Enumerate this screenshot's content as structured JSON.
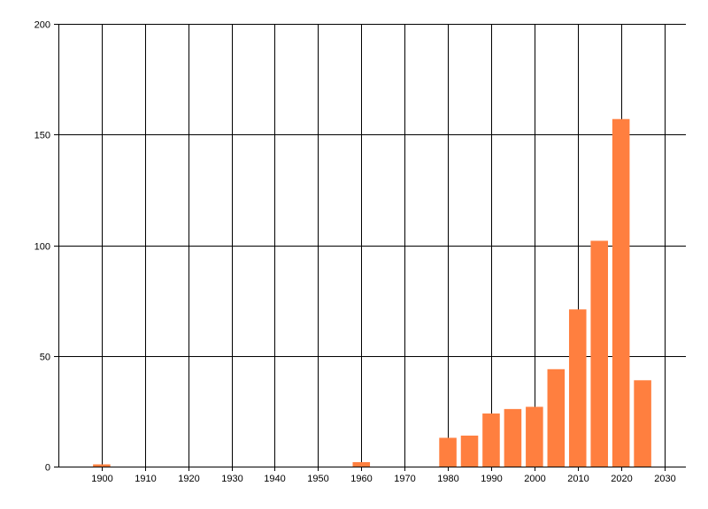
{
  "chart_data": {
    "type": "bar",
    "x": [
      1900,
      1960,
      1980,
      1985,
      1990,
      1995,
      2000,
      2005,
      2010,
      2015,
      2020,
      2025
    ],
    "values": [
      1,
      2,
      13,
      14,
      24,
      26,
      27,
      44,
      71,
      102,
      157,
      39
    ],
    "bar_width_years": 4,
    "xlim": [
      1890,
      2035
    ],
    "ylim": [
      0,
      200
    ],
    "x_ticks": [
      1900,
      1910,
      1920,
      1930,
      1940,
      1950,
      1960,
      1970,
      1980,
      1990,
      2000,
      2010,
      2020,
      2030
    ],
    "x_tick_labels": [
      "1900",
      "1910",
      "1920",
      "1930",
      "1940",
      "1950",
      "1960",
      "1970",
      "1980",
      "1990",
      "2000",
      "2010",
      "2020",
      "2030"
    ],
    "y_ticks": [
      0,
      50,
      100,
      150,
      200
    ],
    "y_tick_labels": [
      "0",
      "50",
      "100",
      "150",
      "200"
    ],
    "grid": true,
    "bar_color": "#FF7F3F",
    "title": "",
    "xlabel": "",
    "ylabel": ""
  }
}
